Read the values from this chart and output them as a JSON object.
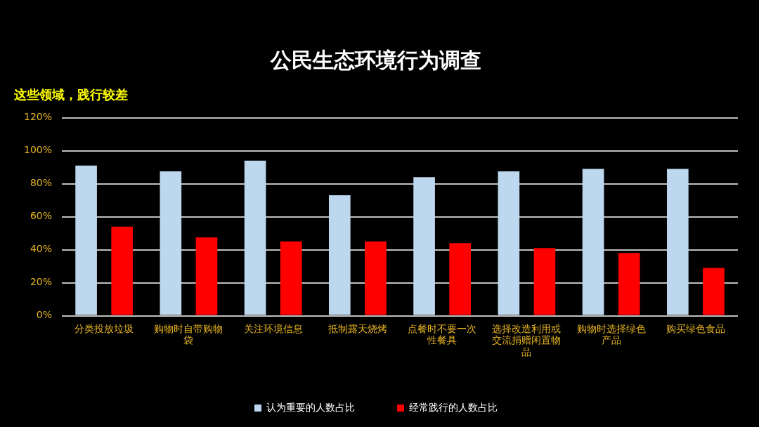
{
  "chart_data": {
    "type": "bar",
    "title": "公民生态环境行为调查",
    "subtitle": "这些领域，践行较差",
    "categories": [
      "分类投放垃圾",
      "购物时自带购物袋",
      "关注环境信息",
      "抵制露天烧烤",
      "点餐时不要一次性餐具",
      "选择改造利用或交流捐赠闲置物品",
      "购物时选择绿色产品",
      "购买绿色食品"
    ],
    "series": [
      {
        "name": "认为重要的人数占比",
        "color": "#bdd7ee",
        "values": [
          91,
          87.5,
          94,
          73,
          84,
          87.5,
          89,
          89
        ]
      },
      {
        "name": "经常践行的人数占比",
        "color": "#ff0000",
        "values": [
          54,
          47.5,
          45,
          45,
          44,
          41,
          38,
          29
        ]
      }
    ],
    "ylim": [
      0,
      120
    ],
    "yticks": [
      {
        "value": 0,
        "label": "0%"
      },
      {
        "value": 20,
        "label": "20%"
      },
      {
        "value": 40,
        "label": "40%"
      },
      {
        "value": 60,
        "label": "60%"
      },
      {
        "value": 80,
        "label": "80%"
      },
      {
        "value": 100,
        "label": "100%"
      },
      {
        "value": 120,
        "label": "120%"
      }
    ],
    "grid": "y",
    "legend": "bottom"
  }
}
